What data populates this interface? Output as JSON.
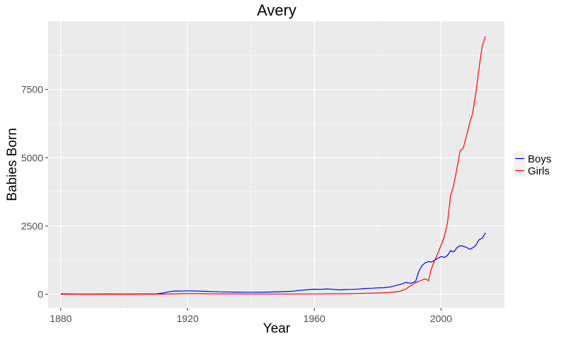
{
  "chart_data": {
    "type": "line",
    "title": "Avery",
    "xlabel": "Year",
    "ylabel": "Babies Born",
    "xlim": [
      1876,
      2020
    ],
    "ylim": [
      -500,
      10000
    ],
    "x_ticks": [
      1880,
      1920,
      1960,
      2000
    ],
    "y_ticks": [
      0,
      2500,
      5000,
      7500
    ],
    "x_tick_labels": [
      "1880",
      "1920",
      "1960",
      "2000"
    ],
    "y_tick_labels": [
      "0",
      "2500",
      "5000",
      "7500"
    ],
    "grid": true,
    "legend_position": "right",
    "series": [
      {
        "name": "Boys",
        "color": "#0000ff",
        "points": [
          [
            1880,
            15
          ],
          [
            1885,
            10
          ],
          [
            1890,
            10
          ],
          [
            1895,
            12
          ],
          [
            1900,
            10
          ],
          [
            1905,
            12
          ],
          [
            1910,
            15
          ],
          [
            1912,
            40
          ],
          [
            1914,
            90
          ],
          [
            1916,
            120
          ],
          [
            1918,
            115
          ],
          [
            1920,
            125
          ],
          [
            1922,
            120
          ],
          [
            1925,
            110
          ],
          [
            1928,
            100
          ],
          [
            1930,
            90
          ],
          [
            1935,
            80
          ],
          [
            1940,
            75
          ],
          [
            1945,
            80
          ],
          [
            1950,
            95
          ],
          [
            1953,
            110
          ],
          [
            1955,
            140
          ],
          [
            1958,
            170
          ],
          [
            1960,
            185
          ],
          [
            1962,
            180
          ],
          [
            1964,
            195
          ],
          [
            1966,
            180
          ],
          [
            1968,
            160
          ],
          [
            1970,
            175
          ],
          [
            1972,
            180
          ],
          [
            1974,
            190
          ],
          [
            1976,
            210
          ],
          [
            1978,
            220
          ],
          [
            1980,
            235
          ],
          [
            1982,
            240
          ],
          [
            1984,
            270
          ],
          [
            1986,
            330
          ],
          [
            1988,
            390
          ],
          [
            1989,
            440
          ],
          [
            1990,
            400
          ],
          [
            1991,
            420
          ],
          [
            1992,
            480
          ],
          [
            1993,
            850
          ],
          [
            1994,
            1050
          ],
          [
            1995,
            1150
          ],
          [
            1996,
            1200
          ],
          [
            1997,
            1180
          ],
          [
            1998,
            1250
          ],
          [
            1999,
            1320
          ],
          [
            2000,
            1380
          ],
          [
            2001,
            1350
          ],
          [
            2002,
            1420
          ],
          [
            2003,
            1600
          ],
          [
            2004,
            1550
          ],
          [
            2005,
            1700
          ],
          [
            2006,
            1780
          ],
          [
            2007,
            1760
          ],
          [
            2008,
            1720
          ],
          [
            2009,
            1650
          ],
          [
            2010,
            1700
          ],
          [
            2011,
            1800
          ],
          [
            2012,
            2000
          ],
          [
            2013,
            2050
          ],
          [
            2014,
            2250
          ]
        ]
      },
      {
        "name": "Girls",
        "color": "#ff0000",
        "points": [
          [
            1880,
            0
          ],
          [
            1890,
            2
          ],
          [
            1900,
            3
          ],
          [
            1910,
            5
          ],
          [
            1915,
            15
          ],
          [
            1920,
            25
          ],
          [
            1925,
            20
          ],
          [
            1930,
            15
          ],
          [
            1940,
            10
          ],
          [
            1950,
            10
          ],
          [
            1960,
            12
          ],
          [
            1970,
            20
          ],
          [
            1975,
            30
          ],
          [
            1980,
            45
          ],
          [
            1983,
            60
          ],
          [
            1985,
            80
          ],
          [
            1987,
            110
          ],
          [
            1988,
            150
          ],
          [
            1989,
            200
          ],
          [
            1990,
            280
          ],
          [
            1991,
            350
          ],
          [
            1992,
            430
          ],
          [
            1993,
            470
          ],
          [
            1994,
            520
          ],
          [
            1995,
            560
          ],
          [
            1996,
            500
          ],
          [
            1997,
            950
          ],
          [
            1998,
            1250
          ],
          [
            1999,
            1500
          ],
          [
            2000,
            1800
          ],
          [
            2001,
            2100
          ],
          [
            2002,
            2600
          ],
          [
            2003,
            3600
          ],
          [
            2004,
            4000
          ],
          [
            2005,
            4600
          ],
          [
            2006,
            5250
          ],
          [
            2007,
            5350
          ],
          [
            2008,
            5800
          ],
          [
            2009,
            6250
          ],
          [
            2010,
            6650
          ],
          [
            2011,
            7400
          ],
          [
            2012,
            8300
          ],
          [
            2013,
            9100
          ],
          [
            2014,
            9450
          ]
        ]
      }
    ]
  }
}
